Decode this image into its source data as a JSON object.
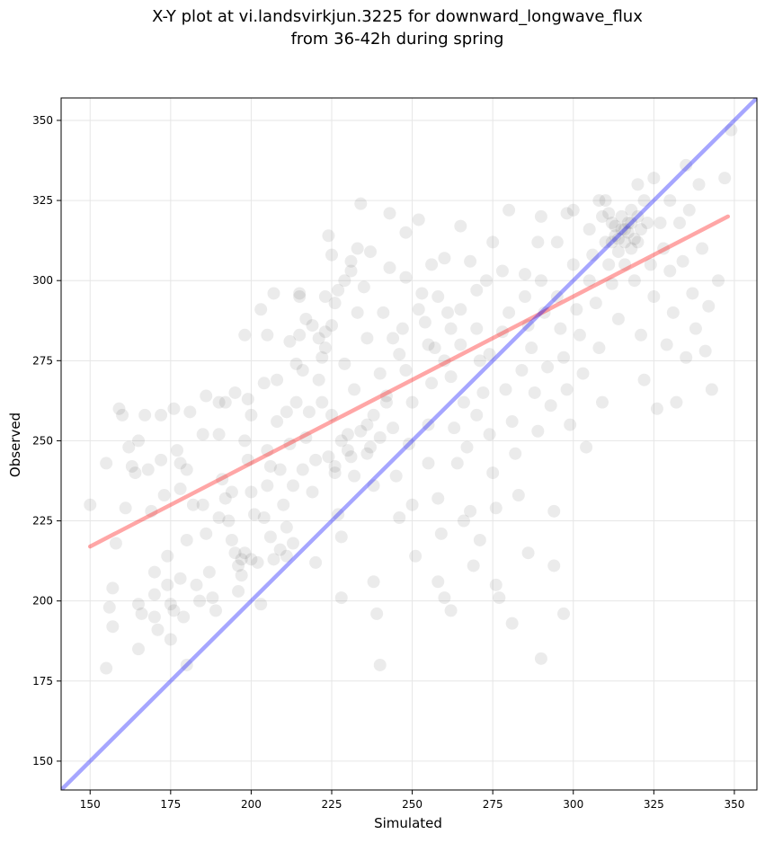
{
  "chart_data": {
    "type": "scatter",
    "title": "X-Y plot at vi.landsvirkjun.3225 for downward_longwave_flux",
    "subtitle": "from 36-42h during spring",
    "xlabel": "Simulated",
    "ylabel": "Observed",
    "xlim": [
      141,
      357
    ],
    "ylim": [
      141,
      357
    ],
    "xticks": [
      150,
      175,
      200,
      225,
      250,
      275,
      300,
      325,
      350
    ],
    "yticks": [
      150,
      175,
      200,
      225,
      250,
      275,
      300,
      325,
      350
    ],
    "grid": true,
    "point_color": "#000000",
    "point_opacity": 0.08,
    "points": [
      [
        150,
        230
      ],
      [
        155,
        243
      ],
      [
        156,
        198
      ],
      [
        157,
        204
      ],
      [
        157,
        192
      ],
      [
        155,
        179
      ],
      [
        158,
        218
      ],
      [
        159,
        260
      ],
      [
        160,
        258
      ],
      [
        161,
        229
      ],
      [
        162,
        248
      ],
      [
        163,
        242
      ],
      [
        164,
        240
      ],
      [
        165,
        199
      ],
      [
        165,
        185
      ],
      [
        166,
        196
      ],
      [
        167,
        258
      ],
      [
        168,
        241
      ],
      [
        169,
        228
      ],
      [
        170,
        209
      ],
      [
        170,
        202
      ],
      [
        170,
        195
      ],
      [
        171,
        191
      ],
      [
        172,
        258
      ],
      [
        172,
        244
      ],
      [
        173,
        233
      ],
      [
        174,
        214
      ],
      [
        174,
        205
      ],
      [
        175,
        199
      ],
      [
        175,
        188
      ],
      [
        176,
        197
      ],
      [
        176,
        260
      ],
      [
        177,
        247
      ],
      [
        178,
        235
      ],
      [
        178,
        207
      ],
      [
        179,
        195
      ],
      [
        180,
        180
      ],
      [
        180,
        219
      ],
      [
        181,
        259
      ],
      [
        182,
        230
      ],
      [
        183,
        205
      ],
      [
        184,
        200
      ],
      [
        185,
        252
      ],
      [
        186,
        264
      ],
      [
        186,
        221
      ],
      [
        187,
        209
      ],
      [
        188,
        201
      ],
      [
        189,
        197
      ],
      [
        190,
        262
      ],
      [
        190,
        252
      ],
      [
        191,
        238
      ],
      [
        192,
        232
      ],
      [
        193,
        225
      ],
      [
        194,
        219
      ],
      [
        195,
        215
      ],
      [
        195,
        265
      ],
      [
        196,
        203
      ],
      [
        197,
        213
      ],
      [
        197,
        208
      ],
      [
        198,
        283
      ],
      [
        199,
        263
      ],
      [
        199,
        244
      ],
      [
        200,
        258
      ],
      [
        200,
        234
      ],
      [
        201,
        227
      ],
      [
        202,
        212
      ],
      [
        203,
        199
      ],
      [
        203,
        291
      ],
      [
        204,
        268
      ],
      [
        205,
        247
      ],
      [
        205,
        236
      ],
      [
        206,
        220
      ],
      [
        207,
        296
      ],
      [
        208,
        269
      ],
      [
        208,
        256
      ],
      [
        209,
        241
      ],
      [
        210,
        230
      ],
      [
        211,
        223
      ],
      [
        212,
        281
      ],
      [
        212,
        249
      ],
      [
        213,
        236
      ],
      [
        214,
        262
      ],
      [
        215,
        296
      ],
      [
        215,
        283
      ],
      [
        216,
        272
      ],
      [
        217,
        251
      ],
      [
        218,
        259
      ],
      [
        219,
        234
      ],
      [
        220,
        244
      ],
      [
        220,
        212
      ],
      [
        221,
        269
      ],
      [
        222,
        276
      ],
      [
        223,
        295
      ],
      [
        223,
        284
      ],
      [
        224,
        314
      ],
      [
        225,
        308
      ],
      [
        225,
        286
      ],
      [
        225,
        258
      ],
      [
        226,
        240
      ],
      [
        227,
        227
      ],
      [
        228,
        220
      ],
      [
        228,
        201
      ],
      [
        229,
        274
      ],
      [
        230,
        252
      ],
      [
        231,
        245
      ],
      [
        231,
        303
      ],
      [
        232,
        266
      ],
      [
        233,
        290
      ],
      [
        233,
        310
      ],
      [
        234,
        324
      ],
      [
        235,
        298
      ],
      [
        236,
        282
      ],
      [
        236,
        255
      ],
      [
        237,
        248
      ],
      [
        238,
        236
      ],
      [
        238,
        206
      ],
      [
        239,
        196
      ],
      [
        240,
        180
      ],
      [
        240,
        271
      ],
      [
        241,
        290
      ],
      [
        242,
        262
      ],
      [
        243,
        321
      ],
      [
        243,
        304
      ],
      [
        244,
        254
      ],
      [
        245,
        239
      ],
      [
        246,
        226
      ],
      [
        247,
        285
      ],
      [
        248,
        301
      ],
      [
        248,
        272
      ],
      [
        249,
        249
      ],
      [
        250,
        262
      ],
      [
        250,
        230
      ],
      [
        251,
        214
      ],
      [
        252,
        319
      ],
      [
        253,
        296
      ],
      [
        254,
        287
      ],
      [
        255,
        255
      ],
      [
        255,
        243
      ],
      [
        256,
        268
      ],
      [
        257,
        279
      ],
      [
        258,
        232
      ],
      [
        259,
        221
      ],
      [
        260,
        307
      ],
      [
        260,
        201
      ],
      [
        261,
        290
      ],
      [
        262,
        270
      ],
      [
        263,
        254
      ],
      [
        264,
        243
      ],
      [
        265,
        317
      ],
      [
        265,
        280
      ],
      [
        266,
        262
      ],
      [
        267,
        248
      ],
      [
        268,
        228
      ],
      [
        269,
        211
      ],
      [
        270,
        297
      ],
      [
        270,
        285
      ],
      [
        271,
        275
      ],
      [
        272,
        265
      ],
      [
        273,
        300
      ],
      [
        274,
        252
      ],
      [
        275,
        312
      ],
      [
        275,
        240
      ],
      [
        276,
        229
      ],
      [
        277,
        201
      ],
      [
        278,
        284
      ],
      [
        279,
        266
      ],
      [
        280,
        322
      ],
      [
        280,
        290
      ],
      [
        281,
        256
      ],
      [
        282,
        246
      ],
      [
        283,
        233
      ],
      [
        284,
        272
      ],
      [
        285,
        302
      ],
      [
        285,
        295
      ],
      [
        286,
        286
      ],
      [
        287,
        279
      ],
      [
        288,
        265
      ],
      [
        289,
        253
      ],
      [
        290,
        320
      ],
      [
        290,
        300
      ],
      [
        291,
        290
      ],
      [
        292,
        273
      ],
      [
        293,
        261
      ],
      [
        294,
        228
      ],
      [
        295,
        312
      ],
      [
        295,
        295
      ],
      [
        296,
        285
      ],
      [
        297,
        276
      ],
      [
        298,
        266
      ],
      [
        299,
        255
      ],
      [
        300,
        322
      ],
      [
        300,
        305
      ],
      [
        301,
        291
      ],
      [
        302,
        283
      ],
      [
        303,
        271
      ],
      [
        304,
        248
      ],
      [
        305,
        316
      ],
      [
        305,
        300
      ],
      [
        306,
        308
      ],
      [
        307,
        293
      ],
      [
        308,
        279
      ],
      [
        309,
        262
      ],
      [
        310,
        325
      ],
      [
        310,
        312
      ],
      [
        311,
        305
      ],
      [
        312,
        318
      ],
      [
        312,
        299
      ],
      [
        313,
        314
      ],
      [
        314,
        309
      ],
      [
        314,
        288
      ],
      [
        315,
        320
      ],
      [
        315,
        316
      ],
      [
        316,
        312
      ],
      [
        316,
        305
      ],
      [
        317,
        318
      ],
      [
        317,
        315
      ],
      [
        318,
        310
      ],
      [
        318,
        322
      ],
      [
        319,
        300
      ],
      [
        320,
        312
      ],
      [
        320,
        330
      ],
      [
        321,
        283
      ],
      [
        322,
        269
      ],
      [
        323,
        318
      ],
      [
        324,
        305
      ],
      [
        325,
        295
      ],
      [
        325,
        332
      ],
      [
        326,
        260
      ],
      [
        327,
        318
      ],
      [
        328,
        310
      ],
      [
        329,
        280
      ],
      [
        330,
        325
      ],
      [
        330,
        303
      ],
      [
        331,
        290
      ],
      [
        332,
        262
      ],
      [
        333,
        318
      ],
      [
        334,
        306
      ],
      [
        335,
        336
      ],
      [
        335,
        276
      ],
      [
        336,
        322
      ],
      [
        337,
        296
      ],
      [
        338,
        285
      ],
      [
        339,
        330
      ],
      [
        340,
        310
      ],
      [
        341,
        278
      ],
      [
        342,
        292
      ],
      [
        343,
        266
      ],
      [
        345,
        300
      ],
      [
        347,
        332
      ],
      [
        349,
        347
      ],
      [
        165,
        250
      ],
      [
        178,
        243
      ],
      [
        192,
        262
      ],
      [
        205,
        283
      ],
      [
        214,
        274
      ],
      [
        226,
        293
      ],
      [
        237,
        309
      ],
      [
        248,
        315
      ],
      [
        258,
        295
      ],
      [
        268,
        306
      ],
      [
        278,
        303
      ],
      [
        289,
        312
      ],
      [
        298,
        321
      ],
      [
        207,
        213
      ],
      [
        209,
        216
      ],
      [
        211,
        214
      ],
      [
        213,
        218
      ],
      [
        196,
        211
      ],
      [
        198,
        215
      ],
      [
        200,
        213
      ],
      [
        224,
        245
      ],
      [
        226,
        242
      ],
      [
        228,
        250
      ],
      [
        230,
        247
      ],
      [
        232,
        239
      ],
      [
        234,
        253
      ],
      [
        236,
        246
      ],
      [
        238,
        258
      ],
      [
        240,
        251
      ],
      [
        242,
        264
      ],
      [
        219,
        286
      ],
      [
        221,
        282
      ],
      [
        223,
        279
      ],
      [
        227,
        297
      ],
      [
        229,
        300
      ],
      [
        231,
        306
      ],
      [
        215,
        295
      ],
      [
        217,
        288
      ],
      [
        308,
        325
      ],
      [
        309,
        320
      ],
      [
        311,
        321
      ],
      [
        313,
        317
      ],
      [
        319,
        313
      ],
      [
        321,
        316
      ],
      [
        318,
        318
      ],
      [
        316,
        316
      ],
      [
        314,
        313
      ],
      [
        312,
        312
      ],
      [
        320,
        320
      ],
      [
        322,
        325
      ],
      [
        255,
        280
      ],
      [
        260,
        275
      ],
      [
        265,
        291
      ],
      [
        270,
        258
      ],
      [
        244,
        282
      ],
      [
        246,
        277
      ],
      [
        252,
        291
      ],
      [
        256,
        305
      ],
      [
        262,
        285
      ],
      [
        274,
        277
      ],
      [
        180,
        241
      ],
      [
        185,
        230
      ],
      [
        190,
        226
      ],
      [
        194,
        234
      ],
      [
        198,
        250
      ],
      [
        204,
        226
      ],
      [
        206,
        242
      ],
      [
        211,
        259
      ],
      [
        216,
        241
      ],
      [
        222,
        262
      ],
      [
        258,
        206
      ],
      [
        262,
        197
      ],
      [
        266,
        225
      ],
      [
        271,
        219
      ],
      [
        276,
        205
      ],
      [
        281,
        193
      ],
      [
        286,
        215
      ],
      [
        290,
        182
      ],
      [
        294,
        211
      ],
      [
        297,
        196
      ]
    ],
    "series": [
      {
        "name": "",
        "type": "line",
        "color": "#ff0000",
        "opacity": 0.35,
        "x": [
          150,
          348
        ],
        "y": [
          217,
          320
        ]
      },
      {
        "name": "",
        "type": "line",
        "color": "#0000ff",
        "opacity": 0.35,
        "x": [
          141,
          357
        ],
        "y": [
          141,
          357
        ]
      }
    ]
  }
}
